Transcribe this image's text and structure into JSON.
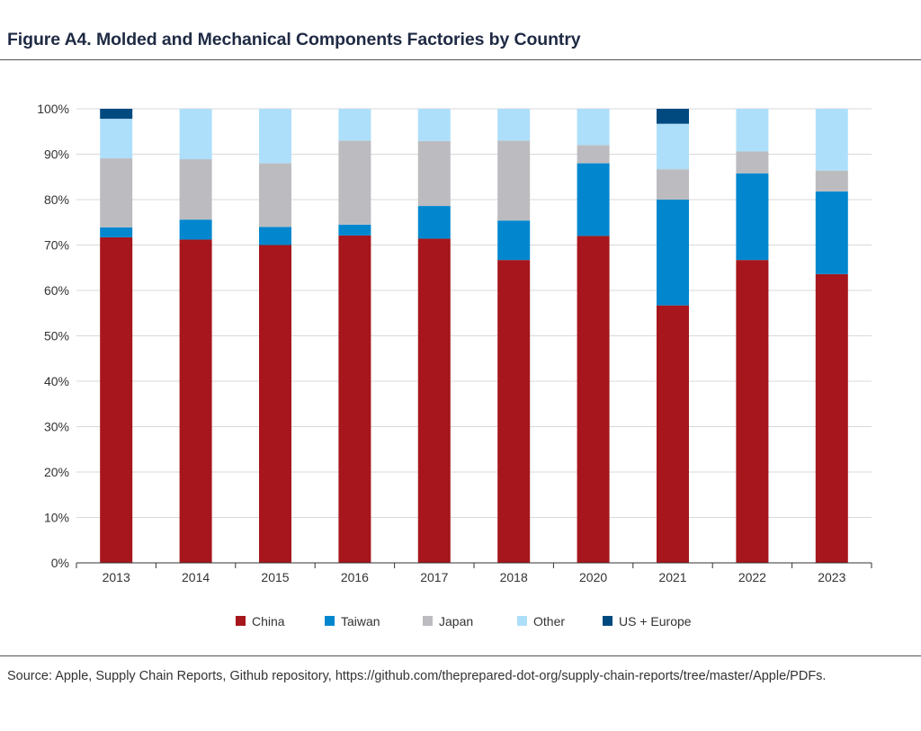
{
  "page": {
    "title": "Figure A4. Molded and Mechanical Components Factories by Country",
    "source": "Source: Apple, Supply Chain Reports, Github repository, https://github.com/theprepared-dot-org/supply-chain-reports/tree/master/Apple/PDFs."
  },
  "chart_data": {
    "type": "bar",
    "stacked": true,
    "title": "",
    "xlabel": "",
    "ylabel": "",
    "ylim": [
      0,
      100
    ],
    "yticks": [
      "0%",
      "10%",
      "20%",
      "30%",
      "40%",
      "50%",
      "60%",
      "70%",
      "80%",
      "90%",
      "100%"
    ],
    "grid": true,
    "legend_position": "bottom",
    "categories": [
      "2013",
      "2014",
      "2015",
      "2016",
      "2017",
      "2018",
      "2020",
      "2021",
      "2022",
      "2023"
    ],
    "series": [
      {
        "name": "China",
        "color": "#a6161c",
        "values": [
          71.7,
          71.2,
          70.0,
          72.1,
          71.4,
          66.7,
          72.0,
          56.7,
          66.7,
          63.6
        ]
      },
      {
        "name": "Taiwan",
        "color": "#0287cf",
        "values": [
          2.2,
          4.4,
          4.0,
          2.4,
          7.2,
          8.7,
          16.0,
          23.3,
          19.1,
          18.2
        ]
      },
      {
        "name": "Japan",
        "color": "#bcbcc0",
        "values": [
          15.2,
          13.3,
          14.0,
          18.5,
          14.3,
          17.6,
          4.0,
          6.7,
          4.8,
          4.6
        ]
      },
      {
        "name": "Other",
        "color": "#aedffa",
        "values": [
          8.7,
          11.1,
          12.0,
          7.0,
          7.1,
          7.0,
          8.0,
          10.0,
          9.4,
          13.6
        ]
      },
      {
        "name": "US + Europe",
        "color": "#014a80",
        "values": [
          2.2,
          0,
          0,
          0,
          0,
          0,
          0,
          3.3,
          0,
          0
        ]
      }
    ]
  }
}
